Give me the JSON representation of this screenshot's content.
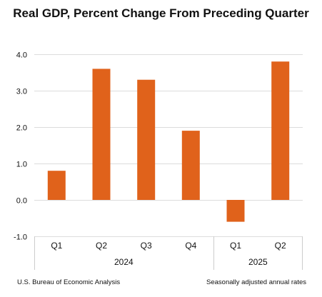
{
  "chart_data": {
    "type": "bar",
    "title": "Real GDP, Percent Change From Preceding Quarter",
    "categories": [
      "Q1",
      "Q2",
      "Q3",
      "Q4",
      "Q1",
      "Q2"
    ],
    "years": [
      {
        "label": "2024",
        "count": 4
      },
      {
        "label": "2025",
        "count": 2
      }
    ],
    "values": [
      0.8,
      3.6,
      3.3,
      1.9,
      -0.6,
      3.8
    ],
    "ylim": [
      -1.0,
      4.0
    ],
    "yticks": [
      4.0,
      3.0,
      2.0,
      1.0,
      0.0,
      -1.0
    ],
    "ytick_labels": [
      "4.0",
      "3.0",
      "2.0",
      "1.0",
      "0.0",
      "-1.0"
    ],
    "bar_color": "#E0621B",
    "grid": true,
    "xlabel": "",
    "ylabel": ""
  },
  "footer": {
    "source": "U.S. Bureau of Economic Analysis",
    "note": "Seasonally adjusted annual rates"
  }
}
